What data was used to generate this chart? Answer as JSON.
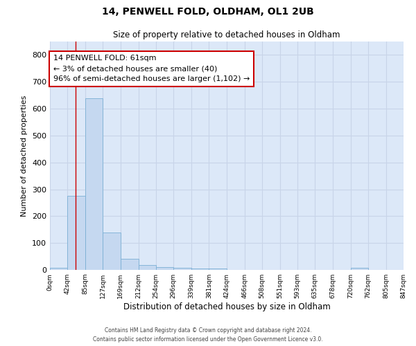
{
  "title_line1": "14, PENWELL FOLD, OLDHAM, OL1 2UB",
  "title_line2": "Size of property relative to detached houses in Oldham",
  "xlabel": "Distribution of detached houses by size in Oldham",
  "ylabel": "Number of detached properties",
  "bin_edges": [
    0,
    42,
    85,
    127,
    169,
    212,
    254,
    296,
    339,
    381,
    424,
    466,
    508,
    551,
    593,
    635,
    678,
    720,
    762,
    805,
    847
  ],
  "bar_heights": [
    8,
    275,
    640,
    140,
    40,
    18,
    10,
    8,
    5,
    5,
    0,
    0,
    0,
    0,
    0,
    0,
    0,
    8,
    0,
    0
  ],
  "bar_facecolor": "#c5d8f0",
  "bar_edgecolor": "#7aafd4",
  "property_line_x": 61,
  "property_line_color": "#cc0000",
  "annotation_text": "14 PENWELL FOLD: 61sqm\n← 3% of detached houses are smaller (40)\n96% of semi-detached houses are larger (1,102) →",
  "annotation_box_edgecolor": "#cc0000",
  "annotation_box_facecolor": "#ffffff",
  "ylim": [
    0,
    850
  ],
  "yticks": [
    0,
    100,
    200,
    300,
    400,
    500,
    600,
    700,
    800
  ],
  "tick_labels": [
    "0sqm",
    "42sqm",
    "85sqm",
    "127sqm",
    "169sqm",
    "212sqm",
    "254sqm",
    "296sqm",
    "339sqm",
    "381sqm",
    "424sqm",
    "466sqm",
    "508sqm",
    "551sqm",
    "593sqm",
    "635sqm",
    "678sqm",
    "720sqm",
    "762sqm",
    "805sqm",
    "847sqm"
  ],
  "grid_color": "#c8d4e8",
  "background_color": "#dce8f8",
  "footer_line1": "Contains HM Land Registry data © Crown copyright and database right 2024.",
  "footer_line2": "Contains public sector information licensed under the Open Government Licence v3.0."
}
